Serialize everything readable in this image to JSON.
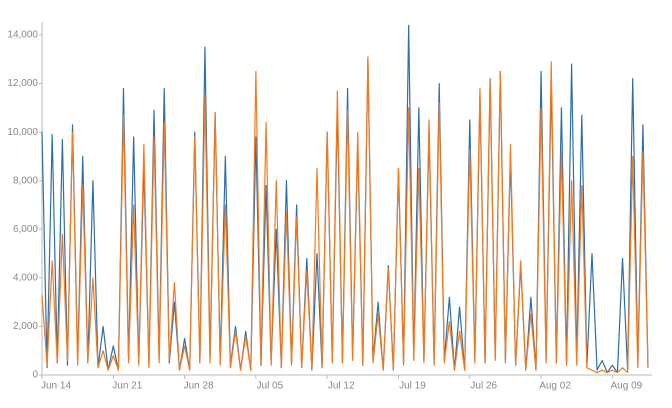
{
  "chart_data": {
    "type": "line",
    "categories": [
      "Jun 14",
      null,
      null,
      null,
      null,
      null,
      null,
      null,
      null,
      null,
      null,
      null,
      null,
      null,
      "Jun 21",
      null,
      null,
      null,
      null,
      null,
      null,
      null,
      null,
      null,
      null,
      null,
      null,
      null,
      "Jun 28",
      null,
      null,
      null,
      null,
      null,
      null,
      null,
      null,
      null,
      null,
      null,
      null,
      null,
      "Jul 05",
      null,
      null,
      null,
      null,
      null,
      null,
      null,
      null,
      null,
      null,
      null,
      null,
      null,
      "Jul 12",
      null,
      null,
      null,
      null,
      null,
      null,
      null,
      null,
      null,
      null,
      null,
      null,
      null,
      "Jul 19",
      null,
      null,
      null,
      null,
      null,
      null,
      null,
      null,
      null,
      null,
      null,
      null,
      null,
      "Jul 26",
      null,
      null,
      null,
      null,
      null,
      null,
      null,
      null,
      null,
      null,
      null,
      null,
      null,
      "Aug 02",
      null,
      null,
      null,
      null,
      null,
      null,
      null,
      null,
      null,
      null,
      null,
      null,
      null,
      "Aug 09",
      null,
      null,
      null,
      null,
      null,
      null,
      null
    ],
    "series": [
      {
        "color": "#2f6ea8",
        "values": [
          10000,
          300,
          9900,
          500,
          9700,
          400,
          10300,
          600,
          9000,
          500,
          8000,
          300,
          2000,
          200,
          1200,
          200,
          11800,
          600,
          9800,
          500,
          8600,
          400,
          10900,
          700,
          11800,
          500,
          3000,
          200,
          1500,
          200,
          10000,
          500,
          13500,
          700,
          10800,
          500,
          9000,
          400,
          2000,
          200,
          1800,
          200,
          9800,
          400,
          7800,
          500,
          6000,
          300,
          8000,
          500,
          7000,
          300,
          4800,
          200,
          5000,
          300,
          10000,
          600,
          11000,
          500,
          11800,
          700,
          9500,
          400,
          13000,
          600,
          3000,
          200,
          4500,
          200,
          8500,
          500,
          14400,
          700,
          11000,
          600,
          10000,
          500,
          12000,
          600,
          3200,
          200,
          2800,
          200,
          10500,
          600,
          11500,
          500,
          12200,
          700,
          12500,
          600,
          9000,
          400,
          4500,
          200,
          3200,
          200,
          12500,
          600,
          12000,
          500,
          11000,
          500,
          12800,
          600,
          10700,
          400,
          5000,
          200,
          600,
          100,
          400,
          100,
          4800,
          200,
          12200,
          400,
          10300,
          300
        ]
      },
      {
        "color": "#f47a20",
        "values": [
          3300,
          400,
          4700,
          500,
          5800,
          600,
          10000,
          400,
          7800,
          500,
          4000,
          300,
          1000,
          200,
          800,
          200,
          10700,
          500,
          7000,
          400,
          9500,
          300,
          9800,
          500,
          10400,
          600,
          3800,
          200,
          1200,
          200,
          9800,
          500,
          11500,
          500,
          10800,
          400,
          7000,
          300,
          1800,
          200,
          1600,
          200,
          12500,
          500,
          10400,
          400,
          8000,
          300,
          6700,
          400,
          6500,
          300,
          4300,
          200,
          8500,
          300,
          10000,
          500,
          11700,
          500,
          10900,
          600,
          10000,
          400,
          13100,
          500,
          2500,
          200,
          4400,
          200,
          8500,
          400,
          11000,
          600,
          8500,
          500,
          10500,
          400,
          11200,
          500,
          2200,
          200,
          1800,
          200,
          9300,
          500,
          11800,
          500,
          12200,
          600,
          12500,
          500,
          9500,
          400,
          4700,
          200,
          2500,
          200,
          11000,
          500,
          12900,
          500,
          9200,
          400,
          8000,
          400,
          7800,
          300,
          200,
          100,
          200,
          100,
          200,
          100,
          300,
          100,
          9000,
          300,
          9200,
          300
        ]
      }
    ],
    "ylim": [
      0,
      14500
    ],
    "yticks": [
      0,
      {
        "value": 2000,
        "label": "2,000"
      },
      {
        "value": 4000,
        "label": "4,000"
      },
      {
        "value": 6000,
        "label": "6,000"
      },
      {
        "value": 8000,
        "label": "8,000"
      },
      {
        "value": 10000,
        "label": "10,000"
      },
      {
        "value": 12000,
        "label": "12,000"
      },
      {
        "value": 14000,
        "label": "14,000"
      }
    ],
    "grid": false
  }
}
